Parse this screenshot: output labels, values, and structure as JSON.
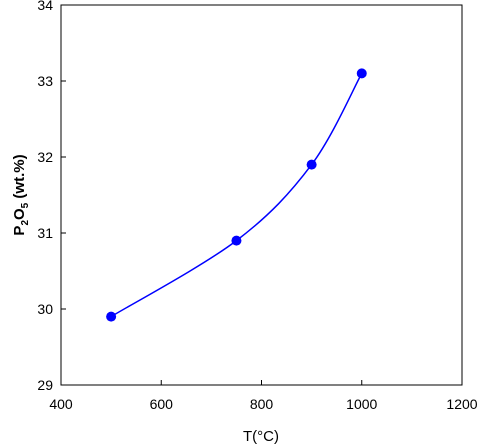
{
  "chart_data": {
    "type": "line",
    "x": [
      500,
      750,
      900,
      1000
    ],
    "series": [
      {
        "values": [
          29.9,
          30.9,
          31.9,
          33.1
        ],
        "color": "#0000ff"
      }
    ],
    "xlabel": "T(°C)",
    "ylabel": {
      "base": "P",
      "sub1": "2",
      "mid": "O",
      "sub2": "5",
      "tail": " (wt.%)"
    },
    "xlim": [
      400,
      1200
    ],
    "ylim": [
      29,
      34
    ],
    "xticks": [
      400,
      600,
      800,
      1000,
      1200
    ],
    "yticks": [
      29,
      30,
      31,
      32,
      33,
      34
    ],
    "grid": false,
    "line_style": "smooth"
  }
}
